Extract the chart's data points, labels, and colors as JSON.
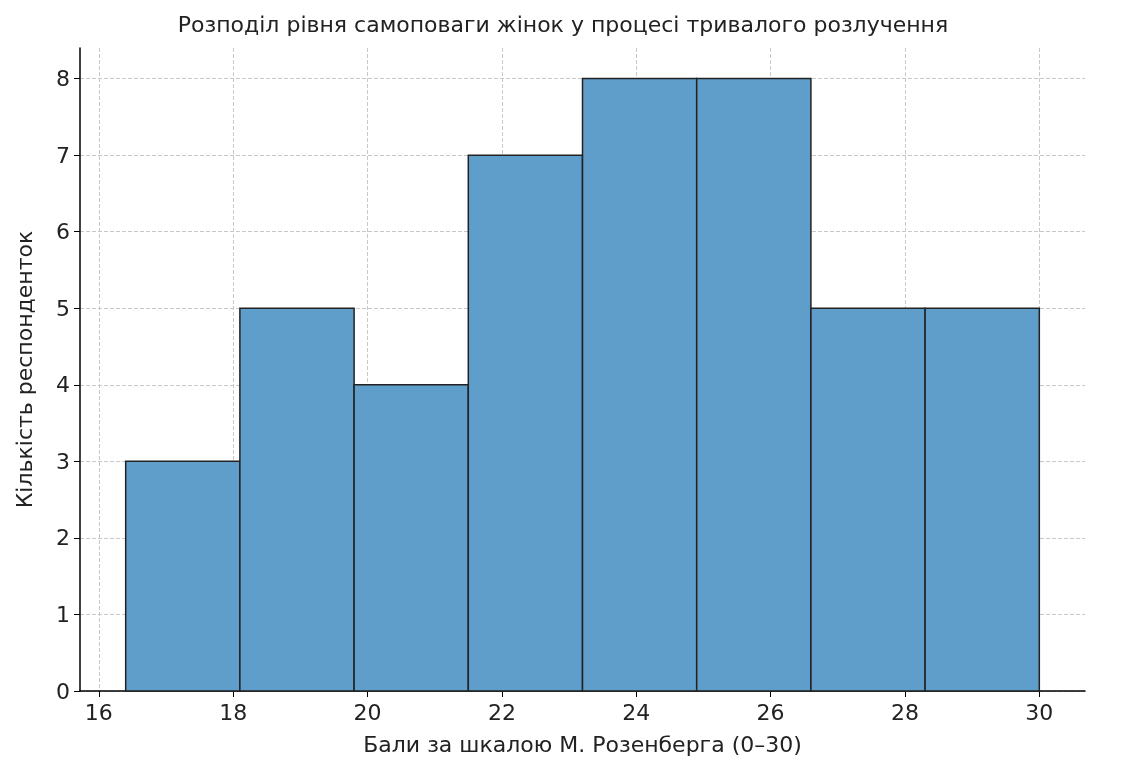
{
  "chart_data": {
    "type": "histogram",
    "title": "Розподіл рівня самоповаги жінок у процесі тривалого розлучення",
    "xlabel": "Бали за шкалою М. Розенберга (0–30)",
    "ylabel": "Кількість респонденток",
    "bins": [
      16.4,
      18.1,
      19.8,
      21.5,
      23.2,
      24.9,
      26.6,
      28.3,
      30
    ],
    "values": [
      3,
      5,
      4,
      7,
      8,
      8,
      5,
      5
    ],
    "color": "#5f9ecb",
    "xlim": [
      15.72,
      30.68
    ],
    "xticks": [
      16,
      18,
      20,
      22,
      24,
      26,
      28,
      30
    ],
    "ylim": [
      0,
      8.4
    ],
    "yticks": [
      0,
      1,
      2,
      3,
      4,
      5,
      6,
      7,
      8
    ],
    "grid": true
  }
}
